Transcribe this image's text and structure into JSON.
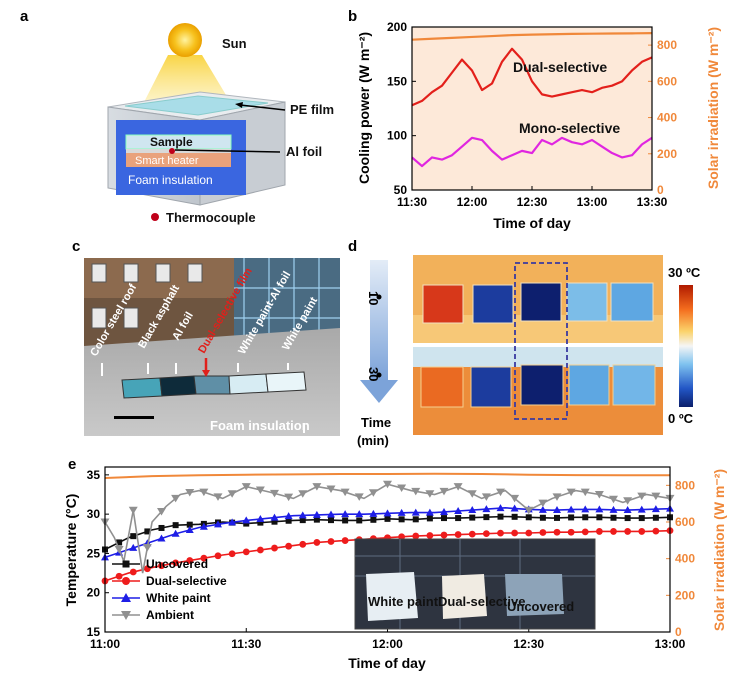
{
  "panels": {
    "a": {
      "letter": "a",
      "labels": {
        "sun": "Sun",
        "pe_film": "PE film",
        "sample": "Sample",
        "smart_heater": "Smart heater",
        "al_foil": "Al foil",
        "foam_insulation": "Foam insulation",
        "thermocouple": "Thermocouple"
      }
    },
    "b": {
      "letter": "b"
    },
    "c": {
      "letter": "c",
      "labels": {
        "color_steel_roof": "Color steel roof",
        "black_asphalt": "Black asphalt",
        "al_foil": "Al foil",
        "dual_selective_film": "Dual-selective film",
        "white_paint_al_foil": "White paint-Al foil",
        "white_paint": "White paint",
        "foam_insulation": "Foam insulation"
      }
    },
    "d": {
      "letter": "d",
      "time_marks": [
        "10",
        "30"
      ],
      "time_label_line1": "Time",
      "time_label_line2": "(min)",
      "colorbar_max": "30 ºC",
      "colorbar_min": "0 ºC"
    },
    "e": {
      "letter": "e",
      "inset_labels": {
        "white_paint": "White paint",
        "dual_selective": "Dual-selective",
        "uncovered": "Uncovered"
      }
    }
  },
  "chart_data": [
    {
      "id": "b",
      "type": "line",
      "xlabel": "Time of day",
      "ylabel": "Cooling power (W m⁻²)",
      "y2label": "Solar irradiation (W m⁻²)",
      "x_ticks": [
        "11:30",
        "12:00",
        "12:30",
        "13:00",
        "13:30"
      ],
      "xlim": [
        0,
        120
      ],
      "ylim": [
        50,
        200
      ],
      "y_ticks": [
        50,
        100,
        150,
        200
      ],
      "y2lim": [
        0,
        900
      ],
      "y2_ticks": [
        0,
        200,
        400,
        600,
        800
      ],
      "colors": {
        "dual": "#e3201b",
        "mono": "#e026e0",
        "solar": "#f0883a"
      },
      "annotations": {
        "dual": "Dual-selective",
        "mono": "Mono-selective"
      },
      "series": [
        {
          "name": "Dual-selective",
          "axis": "left",
          "x": [
            0,
            5,
            10,
            15,
            20,
            25,
            30,
            35,
            40,
            45,
            50,
            55,
            60,
            65,
            70,
            75,
            80,
            85,
            90,
            95,
            100,
            105,
            110,
            115,
            120
          ],
          "values": [
            128,
            132,
            140,
            146,
            158,
            170,
            160,
            142,
            148,
            168,
            180,
            170,
            150,
            138,
            136,
            138,
            140,
            142,
            140,
            144,
            146,
            150,
            160,
            168,
            172
          ]
        },
        {
          "name": "Mono-selective",
          "axis": "left",
          "x": [
            0,
            5,
            10,
            15,
            20,
            25,
            30,
            35,
            40,
            45,
            50,
            55,
            60,
            65,
            70,
            75,
            80,
            85,
            90,
            95,
            100,
            105,
            110,
            115,
            120
          ],
          "values": [
            80,
            72,
            80,
            78,
            82,
            90,
            98,
            96,
            86,
            78,
            82,
            86,
            84,
            96,
            92,
            98,
            94,
            92,
            96,
            90,
            84,
            80,
            82,
            92,
            98
          ]
        },
        {
          "name": "Solar irradiation",
          "axis": "right",
          "x": [
            0,
            10,
            20,
            30,
            40,
            50,
            60,
            70,
            80,
            90,
            100,
            110,
            120
          ],
          "values": [
            830,
            835,
            840,
            845,
            850,
            855,
            858,
            860,
            862,
            863,
            864,
            865,
            866
          ]
        }
      ]
    },
    {
      "id": "e",
      "type": "line",
      "xlabel": "Time of day",
      "ylabel": "Temperature (°C)",
      "y2label": "Solar irradiation (W m⁻²)",
      "x_ticks": [
        "11:00",
        "11:30",
        "12:00",
        "12:30",
        "13:00"
      ],
      "xlim": [
        0,
        120
      ],
      "ylim": [
        15,
        36
      ],
      "y_ticks": [
        15,
        20,
        25,
        30,
        35
      ],
      "y2lim": [
        0,
        900
      ],
      "y2_ticks": [
        0,
        200,
        400,
        600,
        800
      ],
      "legend": [
        "Uncovered",
        "Dual-selective",
        "White paint",
        "Ambient"
      ],
      "colors": {
        "Uncovered": "#111111",
        "Dual-selective": "#ee1c1c",
        "White paint": "#1e1ee6",
        "Ambient": "#909090",
        "Solar": "#f0883a"
      },
      "series": [
        {
          "name": "Uncovered",
          "x": [
            0,
            5,
            10,
            15,
            20,
            25,
            30,
            35,
            40,
            45,
            50,
            55,
            60,
            65,
            70,
            75,
            80,
            85,
            90,
            95,
            100,
            105,
            110,
            115,
            120
          ],
          "values": [
            25.5,
            27.0,
            28.0,
            28.6,
            28.7,
            29.0,
            28.8,
            29.0,
            29.2,
            29.3,
            29.2,
            29.2,
            29.4,
            29.3,
            29.5,
            29.5,
            29.6,
            29.7,
            29.6,
            29.5,
            29.6,
            29.6,
            29.5,
            29.5,
            29.6
          ]
        },
        {
          "name": "Dual-selective",
          "x": [
            0,
            5,
            10,
            15,
            20,
            25,
            30,
            35,
            40,
            45,
            50,
            55,
            60,
            65,
            70,
            75,
            80,
            85,
            90,
            95,
            100,
            105,
            110,
            115,
            120
          ],
          "values": [
            21.5,
            22.5,
            23.2,
            23.8,
            24.3,
            24.8,
            25.2,
            25.6,
            26.0,
            26.4,
            26.6,
            26.8,
            27.0,
            27.2,
            27.3,
            27.4,
            27.5,
            27.6,
            27.6,
            27.7,
            27.7,
            27.8,
            27.8,
            27.8,
            27.9
          ]
        },
        {
          "name": "White paint",
          "x": [
            0,
            5,
            10,
            15,
            20,
            25,
            30,
            35,
            40,
            45,
            50,
            55,
            60,
            65,
            70,
            75,
            80,
            85,
            90,
            95,
            100,
            105,
            110,
            115,
            120
          ],
          "values": [
            24.5,
            25.5,
            26.5,
            27.5,
            28.3,
            28.8,
            29.2,
            29.5,
            29.8,
            29.9,
            30.0,
            30.0,
            30.1,
            30.2,
            30.2,
            30.4,
            30.6,
            30.8,
            30.6,
            30.5,
            30.6,
            30.6,
            30.5,
            30.6,
            30.7
          ]
        },
        {
          "name": "Ambient",
          "x": [
            0,
            2,
            4,
            6,
            8,
            10,
            13,
            16,
            20,
            25,
            30,
            35,
            40,
            45,
            50,
            55,
            60,
            65,
            70,
            75,
            80,
            85,
            90,
            95,
            100,
            105,
            110,
            115,
            120
          ],
          "values": [
            29.0,
            27.0,
            24.0,
            30.5,
            22.5,
            29.0,
            31.0,
            32.5,
            33.0,
            32.0,
            33.5,
            32.8,
            32.0,
            33.5,
            33.0,
            32.0,
            33.8,
            33.0,
            32.5,
            33.5,
            32.0,
            33.0,
            30.5,
            32.0,
            33.0,
            32.5,
            31.5,
            32.5,
            32.0
          ]
        },
        {
          "name": "Solar irradiation",
          "axis": "right",
          "x": [
            0,
            10,
            20,
            30,
            40,
            50,
            60,
            70,
            80,
            90,
            100,
            110,
            120
          ],
          "values": [
            840,
            850,
            855,
            858,
            860,
            862,
            862,
            863,
            862,
            858,
            856,
            855,
            855
          ]
        }
      ]
    }
  ]
}
